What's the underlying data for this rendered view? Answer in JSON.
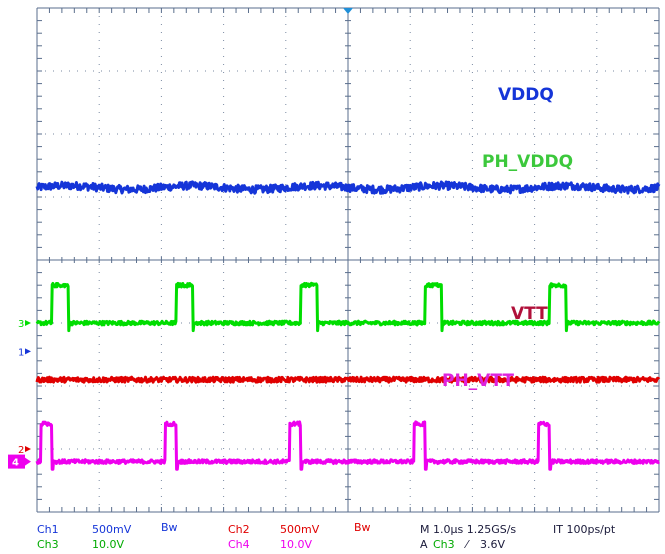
{
  "chart_data": {
    "type": "line",
    "x_divisions": 10,
    "y_divisions": 8,
    "grid": true,
    "background": "#ffffff",
    "grid_color": "#5a6e8c",
    "trigger_marker_color": "#1f8fd8",
    "series": [
      {
        "name": "VDDQ",
        "channel": 1,
        "color": "#1535d8",
        "label_color": "#1535d8",
        "baseline_div": 5.15,
        "ripple_div": 0.06,
        "pulse_height_div": 0,
        "pulse_width_div": 0,
        "pulse_starts_div": []
      },
      {
        "name": "PH_VDDQ",
        "channel": 3,
        "color": "#00dd00",
        "label_color": "#3cc83c",
        "baseline_div": 3.0,
        "ripple_div": 0.03,
        "pulse_height_div": 0.6,
        "pulse_width_div": 0.13,
        "pulse_starts_div": [
          0.12,
          1.12,
          2.12,
          3.12,
          4.12
        ]
      },
      {
        "name": "VTT",
        "channel": 2,
        "color": "#e00000",
        "label_color": "#b0103a",
        "baseline_div": 2.1,
        "ripple_div": 0.04,
        "pulse_height_div": 0,
        "pulse_width_div": 0,
        "pulse_starts_div": []
      },
      {
        "name": "PH_VTT",
        "channel": 4,
        "color": "#ee00ee",
        "label_color": "#dd22dd",
        "baseline_div": 0.8,
        "ripple_div": 0.03,
        "pulse_height_div": 0.6,
        "pulse_width_div": 0.09,
        "pulse_starts_div": [
          0.03,
          1.03,
          2.03,
          3.03,
          4.03
        ]
      }
    ],
    "channel_markers": [
      {
        "text": "3",
        "color": "#00dd00",
        "level_div": 3.0
      },
      {
        "text": "1",
        "color": "#1535d8",
        "level_div": 2.55
      },
      {
        "text": "2",
        "color": "#e00000",
        "level_div": 1.0
      },
      {
        "text": "4",
        "color": "#ffffff",
        "box_color": "#ee00ee",
        "level_div": 0.8
      }
    ]
  },
  "status_bar": {
    "ch1": {
      "label": "Ch1",
      "value": "500mV",
      "color": "#1535d8"
    },
    "ch3": {
      "label": "Ch3",
      "value": "10.0V",
      "color": "#00dd00"
    },
    "bw1": "Bw",
    "ch2": {
      "label": "Ch2",
      "value": "500mV",
      "color": "#e00000"
    },
    "ch4": {
      "label": "Ch4",
      "value": "10.0V",
      "color": "#ee00ee"
    },
    "bw2": "Bw",
    "timebase": "M 1.0µs 1.25GS/s",
    "interp": "IT 100ps/pt",
    "trigger_prefix": "A",
    "trigger_channel": "Ch3",
    "trigger_slope": "⁄",
    "trigger_level": "3.6V"
  }
}
